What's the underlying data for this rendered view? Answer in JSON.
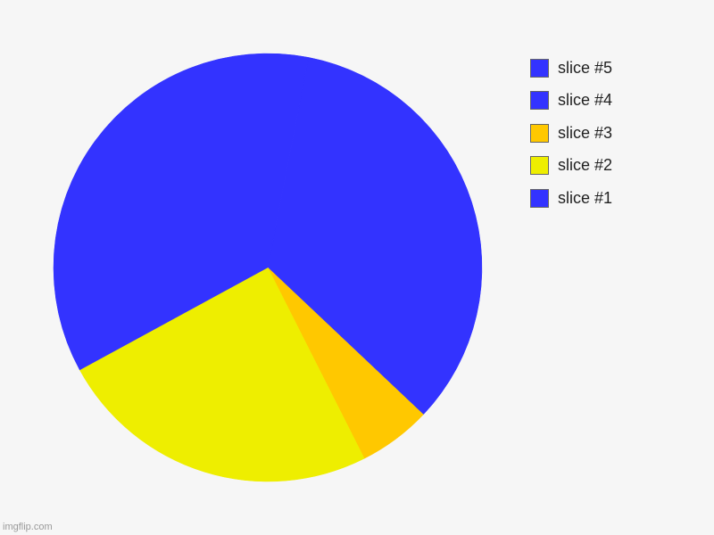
{
  "chart_data": {
    "type": "pie",
    "slices": [
      {
        "label": "slice #1",
        "value": 34.0,
        "color": "#3333ff"
      },
      {
        "label": "slice #2",
        "value": 5.5,
        "color": "#ffc800"
      },
      {
        "label": "slice #3",
        "value": 24.5,
        "color": "#eeee00"
      },
      {
        "label": "slice #4",
        "value": 36.0,
        "color": "#3333ff"
      },
      {
        "label": "slice #5",
        "value": 0.0,
        "color": "#3333ff"
      }
    ],
    "legend_placement": "right",
    "legend": [
      {
        "label": "slice #5",
        "color": "#3333ff"
      },
      {
        "label": "slice #4",
        "color": "#3333ff"
      },
      {
        "label": "slice #3",
        "color": "#ffc800"
      },
      {
        "label": "slice #2",
        "color": "#eeee00"
      },
      {
        "label": "slice #1",
        "color": "#3333ff"
      }
    ],
    "title": "",
    "xlabel": "",
    "ylabel": ""
  },
  "watermark": "imgflip.com"
}
